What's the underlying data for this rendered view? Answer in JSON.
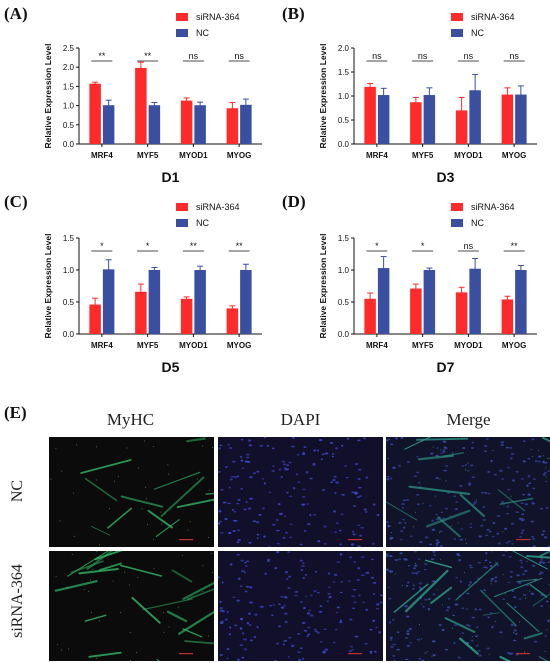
{
  "figure": {
    "panels": [
      "(A)",
      "(B)",
      "(C)",
      "(D)",
      "(E)"
    ]
  },
  "chart_data": [
    {
      "type": "bar",
      "panel": "(A)",
      "title": "D1",
      "xlabel": "",
      "ylabel": "Relative Expression Level",
      "categories": [
        "MRF4",
        "MYF5",
        "MYOD1",
        "MYOG"
      ],
      "ylim": [
        0,
        2.5
      ],
      "yticks": [
        "0.0",
        "0.5",
        "1.0",
        "1.5",
        "2.0",
        "2.5"
      ],
      "legend": "top-right",
      "series": [
        {
          "name": "siRNA-364",
          "color": "#ff2a2a",
          "values": [
            1.57,
            1.98,
            1.13,
            0.93
          ],
          "errors": [
            0.04,
            0.15,
            0.07,
            0.15
          ]
        },
        {
          "name": "NC",
          "color": "#3a4fa0",
          "values": [
            1.01,
            1.01,
            1.01,
            1.02
          ],
          "errors": [
            0.13,
            0.07,
            0.08,
            0.15
          ]
        }
      ],
      "significance": [
        "**",
        "**",
        "ns",
        "ns"
      ]
    },
    {
      "type": "bar",
      "panel": "(B)",
      "title": "D3",
      "xlabel": "",
      "ylabel": "Relative Expression Level",
      "categories": [
        "MRF4",
        "MYF5",
        "MYOD1",
        "MYOG"
      ],
      "ylim": [
        0,
        2.0
      ],
      "yticks": [
        "0.0",
        "0.5",
        "1.0",
        "1.5",
        "2.0"
      ],
      "legend": "top-right",
      "series": [
        {
          "name": "siRNA-364",
          "color": "#ff2a2a",
          "values": [
            1.19,
            0.87,
            0.7,
            1.03
          ],
          "errors": [
            0.07,
            0.1,
            0.27,
            0.14
          ]
        },
        {
          "name": "NC",
          "color": "#3a4fa0",
          "values": [
            1.02,
            1.02,
            1.12,
            1.03
          ],
          "errors": [
            0.14,
            0.15,
            0.33,
            0.18
          ]
        }
      ],
      "significance": [
        "ns",
        "ns",
        "ns",
        "ns"
      ]
    },
    {
      "type": "bar",
      "panel": "(C)",
      "title": "D5",
      "xlabel": "",
      "ylabel": "Relative Expression Level",
      "categories": [
        "MRF4",
        "MYF5",
        "MYOD1",
        "MYOG"
      ],
      "ylim": [
        0,
        1.5
      ],
      "yticks": [
        "0.0",
        "0.5",
        "1.0",
        "1.5"
      ],
      "legend": "top-right",
      "series": [
        {
          "name": "siRNA-364",
          "color": "#ff2a2a",
          "values": [
            0.46,
            0.66,
            0.55,
            0.4
          ],
          "errors": [
            0.1,
            0.12,
            0.03,
            0.04
          ]
        },
        {
          "name": "NC",
          "color": "#3a4fa0",
          "values": [
            1.01,
            1.0,
            1.0,
            1.0
          ],
          "errors": [
            0.15,
            0.04,
            0.06,
            0.09
          ]
        }
      ],
      "significance": [
        "*",
        "*",
        "**",
        "**"
      ]
    },
    {
      "type": "bar",
      "panel": "(D)",
      "title": "D7",
      "xlabel": "",
      "ylabel": "Relative Expression Level",
      "categories": [
        "MRF4",
        "MYF5",
        "MYOD1",
        "MYOG"
      ],
      "ylim": [
        0,
        1.5
      ],
      "yticks": [
        "0.0",
        "0.5",
        "1.0",
        "1.5"
      ],
      "legend": "top-right",
      "series": [
        {
          "name": "siRNA-364",
          "color": "#ff2a2a",
          "values": [
            0.55,
            0.71,
            0.65,
            0.54
          ],
          "errors": [
            0.09,
            0.07,
            0.08,
            0.05
          ]
        },
        {
          "name": "NC",
          "color": "#3a4fa0",
          "values": [
            1.03,
            1.0,
            1.02,
            1.0
          ],
          "errors": [
            0.18,
            0.03,
            0.16,
            0.07
          ]
        }
      ],
      "significance": [
        "*",
        "*",
        "ns",
        "**"
      ]
    }
  ],
  "microscopy": {
    "columns": [
      "MyHC",
      "DAPI",
      "Merge"
    ],
    "rows": [
      "NC",
      "siRNA-364"
    ]
  }
}
